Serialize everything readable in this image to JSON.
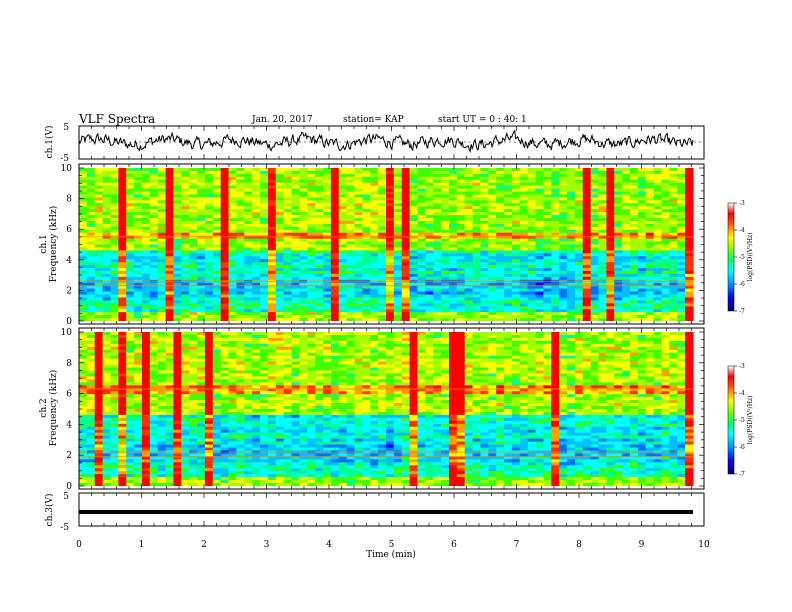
{
  "header": {
    "title": "VLF Spectra",
    "date": "Jan. 20, 2017",
    "station": "station= KAP",
    "start": "start UT =  0 : 40: 1"
  },
  "chart_data": [
    {
      "type": "line",
      "name": "ch1-waveform",
      "ylabel": "ch.1(V)",
      "ylim": [
        -5,
        5
      ],
      "yticks": [
        "5",
        "-5"
      ],
      "xlim": [
        0,
        10
      ]
    },
    {
      "type": "heatmap",
      "name": "ch1-spectrogram",
      "ylabel_top": "ch.1",
      "ylabel": "Frequency (kHz)",
      "ylim": [
        0,
        10
      ],
      "yticks": [
        "0",
        "2",
        "4",
        "6",
        "8",
        "10"
      ],
      "xlim": [
        0,
        10
      ],
      "colorbar": {
        "label": "log(PSD)(V²/Hz)",
        "range": [
          -7,
          -3
        ],
        "ticks": [
          "-3",
          "-4",
          "-5",
          "-6",
          "-7"
        ],
        "colors": [
          "#000080",
          "#0000ff",
          "#00a0ff",
          "#00ffff",
          "#00ff80",
          "#80ff00",
          "#ffff00",
          "#ff8000",
          "#ff0000",
          "#ffffff"
        ]
      }
    },
    {
      "type": "heatmap",
      "name": "ch2-spectrogram",
      "ylabel_top": "ch.2",
      "ylabel": "Frequency (kHz)",
      "ylim": [
        0,
        10
      ],
      "yticks": [
        "0",
        "2",
        "4",
        "6",
        "8",
        "10"
      ],
      "xlim": [
        0,
        10
      ],
      "colorbar": {
        "label": "log(PSD)(V²/Hz)",
        "range": [
          -7,
          -3
        ],
        "ticks": [
          "-3",
          "-4",
          "-5",
          "-6",
          "-7"
        ],
        "colors": [
          "#000080",
          "#0000ff",
          "#00a0ff",
          "#00ffff",
          "#00ff80",
          "#80ff00",
          "#ffff00",
          "#ff8000",
          "#ff0000",
          "#ffffff"
        ]
      }
    },
    {
      "type": "line",
      "name": "ch3-waveform",
      "ylabel": "ch.3(V)",
      "ylim": [
        -5,
        5
      ],
      "yticks": [
        "5",
        "-5"
      ],
      "xlim": [
        0,
        10
      ],
      "xlabel": "Time (min)",
      "xticks": [
        "0",
        "1",
        "2",
        "3",
        "4",
        "5",
        "6",
        "7",
        "8",
        "9",
        "10"
      ]
    }
  ]
}
